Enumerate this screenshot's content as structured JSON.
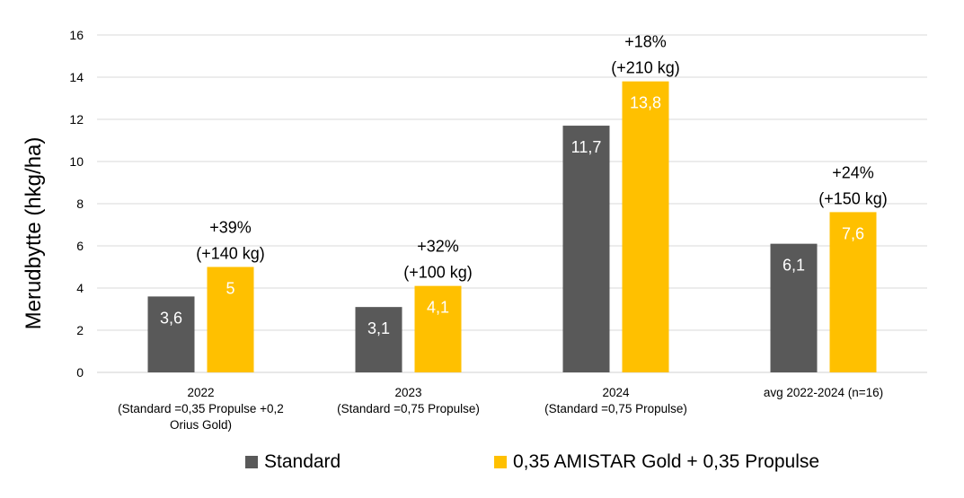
{
  "chart_data": {
    "type": "bar",
    "ylabel": "Merudbytte  (hkg/ha)",
    "ylim": [
      0,
      16
    ],
    "yticks": [
      0,
      2,
      4,
      6,
      8,
      10,
      12,
      14,
      16
    ],
    "grid": true,
    "legend_position": "bottom",
    "categories": [
      [
        "2022",
        "(Standard =0,35 Propulse +0,2",
        "Orius Gold)"
      ],
      [
        "2023",
        "(Standard =0,75 Propulse)"
      ],
      [
        "2024",
        "(Standard =0,75 Propulse)"
      ],
      [
        "avg 2022-2024 (n=16)"
      ]
    ],
    "series": [
      {
        "name": "Standard",
        "color": "#595959",
        "values": [
          3.6,
          3.1,
          11.7,
          6.1
        ],
        "labels": [
          "3,6",
          "3,1",
          "11,7",
          "6,1"
        ]
      },
      {
        "name": "0,35 AMISTAR Gold + 0,35 Propulse",
        "color": "#FFC000",
        "values": [
          5,
          4.1,
          13.8,
          7.6
        ],
        "labels": [
          "5",
          "4,1",
          "13,8",
          "7,6"
        ]
      }
    ],
    "annotations": [
      [
        "+39%",
        "(+140 kg)"
      ],
      [
        "+32%",
        "(+100 kg)"
      ],
      [
        "+18%",
        "(+210 kg)"
      ],
      [
        "+24%",
        "(+150 kg)"
      ]
    ]
  }
}
